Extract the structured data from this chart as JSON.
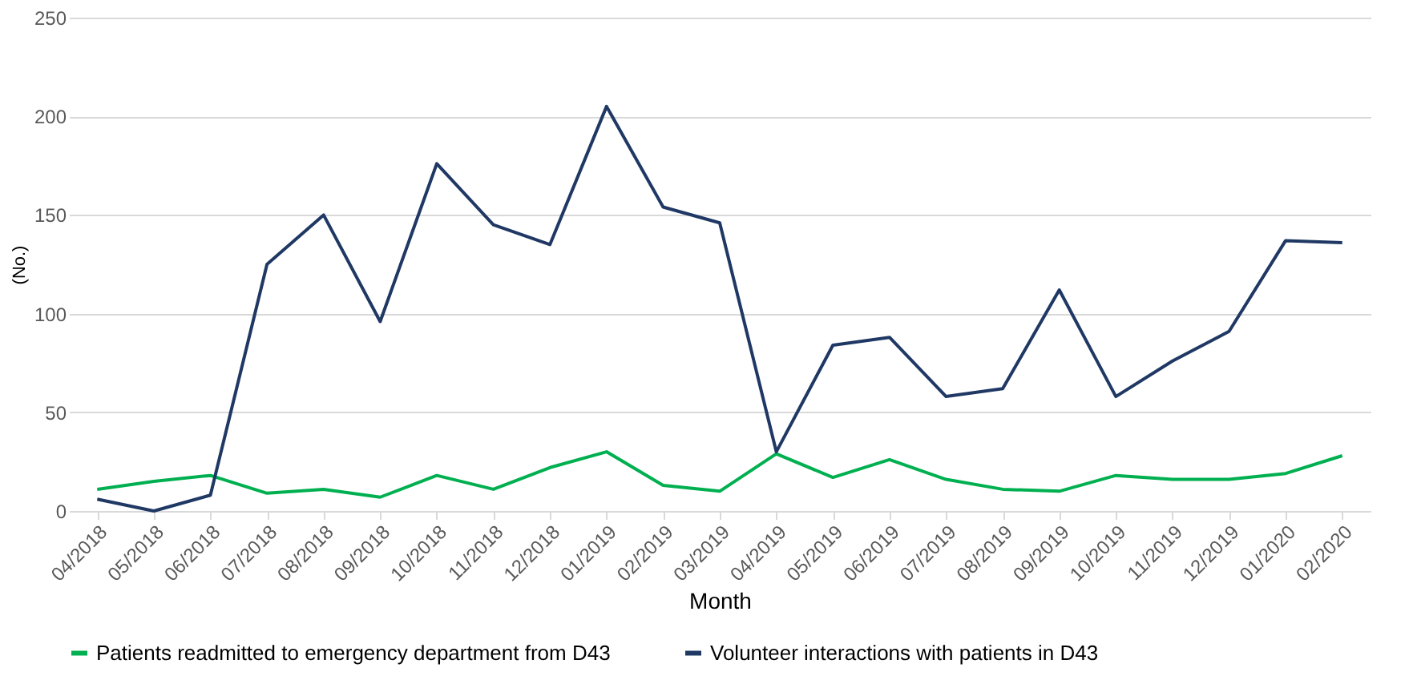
{
  "chart_data": {
    "type": "line",
    "xlabel": "Month",
    "ylabel": "(No.)",
    "categories": [
      "04/2018",
      "05/2018",
      "06/2018",
      "07/2018",
      "08/2018",
      "09/2018",
      "10/2018",
      "11/2018",
      "12/2018",
      "01/2019",
      "02/2019",
      "03/2019",
      "04/2019",
      "05/2019",
      "06/2019",
      "07/2019",
      "08/2019",
      "09/2019",
      "10/2019",
      "11/2019",
      "12/2019",
      "01/2020",
      "02/2020"
    ],
    "series": [
      {
        "name": "Patients readmitted to emergency department from D43",
        "color": "#00b050",
        "values": [
          11,
          15,
          18,
          9,
          11,
          7,
          18,
          11,
          22,
          30,
          13,
          10,
          29,
          17,
          26,
          16,
          11,
          10,
          18,
          16,
          16,
          19,
          28
        ]
      },
      {
        "name": "Volunteer interactions with patients in D43",
        "color": "#1f3864",
        "values": [
          6,
          0,
          8,
          125,
          150,
          96,
          176,
          145,
          135,
          205,
          154,
          146,
          30,
          84,
          88,
          58,
          62,
          112,
          58,
          76,
          91,
          137,
          136
        ]
      }
    ],
    "ylim": [
      0,
      250
    ],
    "yticks": [
      0,
      50,
      100,
      150,
      200,
      250
    ],
    "grid": "y",
    "legend": "bottom",
    "marker": "none",
    "line_style": "solid"
  }
}
